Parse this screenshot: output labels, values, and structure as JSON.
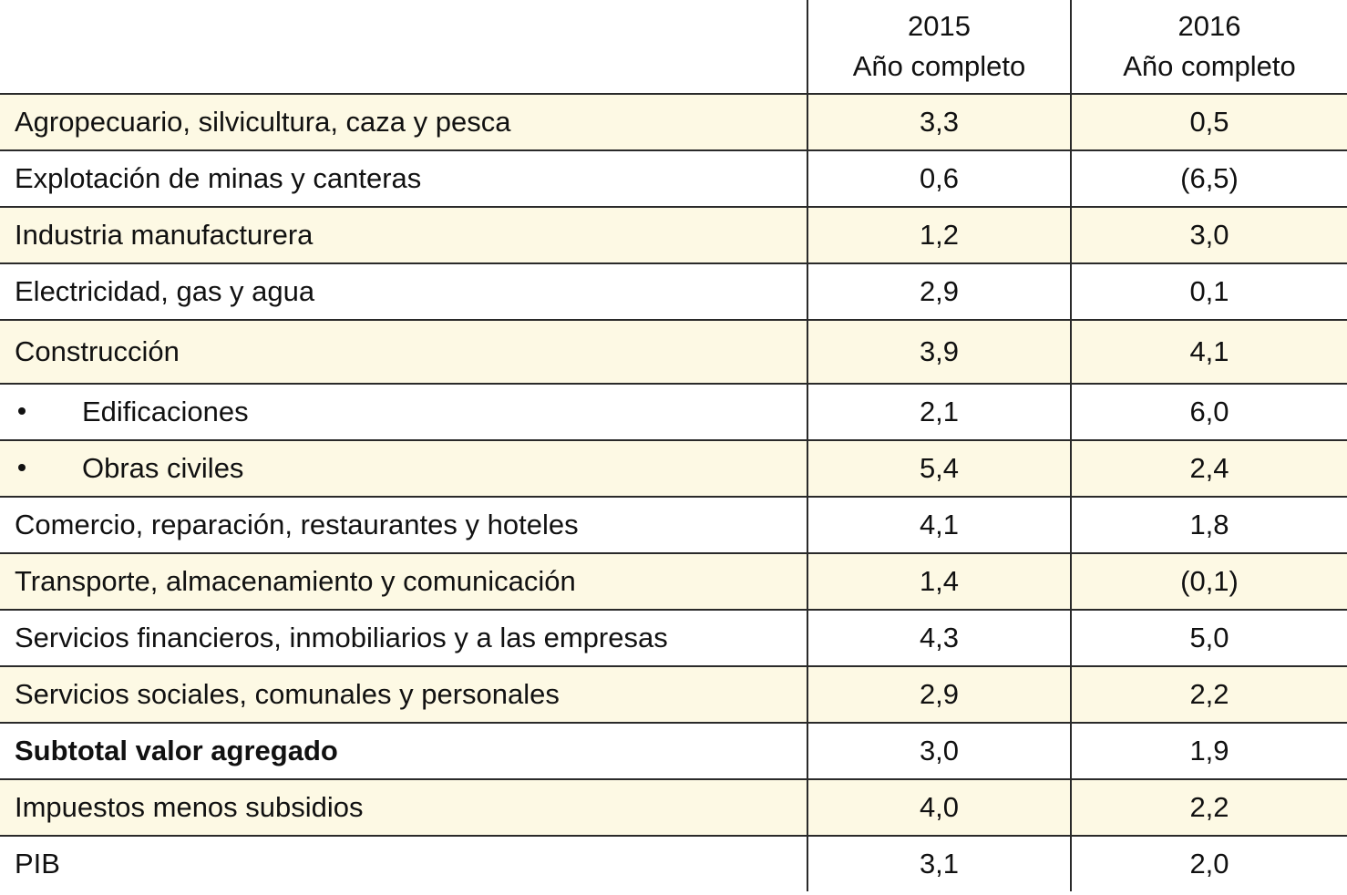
{
  "table": {
    "header": [
      {
        "year": "2015",
        "sub": "Año completo"
      },
      {
        "year": "2016",
        "sub": "Año completo"
      }
    ],
    "rows": [
      [
        "Agropecuario, silvicultura, caza y pesca",
        "3,3",
        "0,5"
      ],
      [
        "Explotación de minas y canteras",
        "0,6",
        "(6,5)"
      ],
      [
        "Industria manufacturera",
        "1,2",
        "3,0"
      ],
      [
        "Electricidad, gas y agua",
        "2,9",
        "0,1"
      ],
      [
        "Construcción",
        "3,9",
        "4,1"
      ],
      [
        "Edificaciones",
        "2,1",
        "6,0"
      ],
      [
        "Obras civiles",
        "5,4",
        "2,4"
      ],
      [
        "Comercio, reparación, restaurantes y hoteles",
        "4,1",
        "1,8"
      ],
      [
        "Transporte, almacenamiento y comunicación",
        "1,4",
        "(0,1)"
      ],
      [
        "Servicios financieros, inmobiliarios y a las empresas",
        "4,3",
        "5,0"
      ],
      [
        "Servicios sociales, comunales y personales",
        "2,9",
        "2,2"
      ],
      [
        "Subtotal valor agregado",
        "3,0",
        "1,9"
      ],
      [
        "Impuestos menos subsidios",
        "4,0",
        "2,2"
      ],
      [
        "PIB",
        "3,1",
        "2,0"
      ]
    ]
  }
}
